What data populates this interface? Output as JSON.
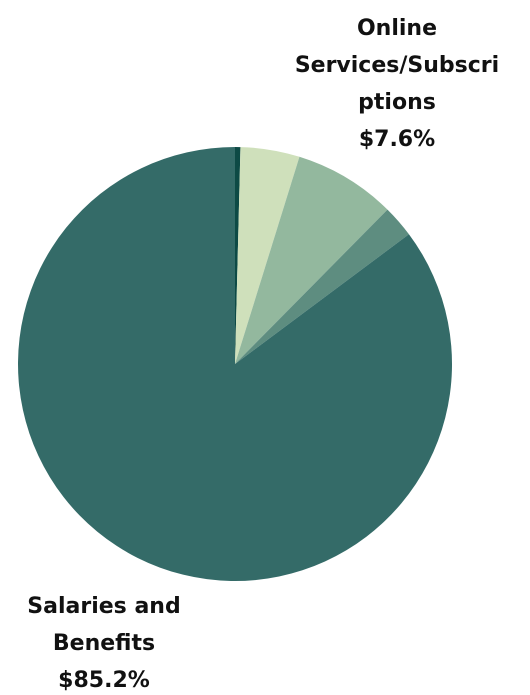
{
  "chart_data": {
    "type": "pie",
    "title": "",
    "slices": [
      {
        "label": "",
        "value": 0.4,
        "color": "#0d4a45"
      },
      {
        "label": "",
        "value": 4.4,
        "color": "#cfe0bb"
      },
      {
        "label": "Online Services/Subscriptions",
        "value_label": "$7.6%",
        "value": 7.6,
        "color": "#93b89e"
      },
      {
        "label": "",
        "value": 2.4,
        "color": "#5e8d80"
      },
      {
        "label": "Salaries and Benefits",
        "value_label": "$85.2%",
        "value": 85.2,
        "color": "#346b68"
      }
    ],
    "start_angle_deg": 0,
    "direction": "clockwise",
    "legend": "none"
  },
  "labels": {
    "online_line1": "Online",
    "online_line2": "Services/Subscri",
    "online_line3": "ptions",
    "online_value": "$7.6%",
    "salaries_line1": "Salaries and",
    "salaries_line2": "Benefits",
    "salaries_value": "$85.2%"
  }
}
